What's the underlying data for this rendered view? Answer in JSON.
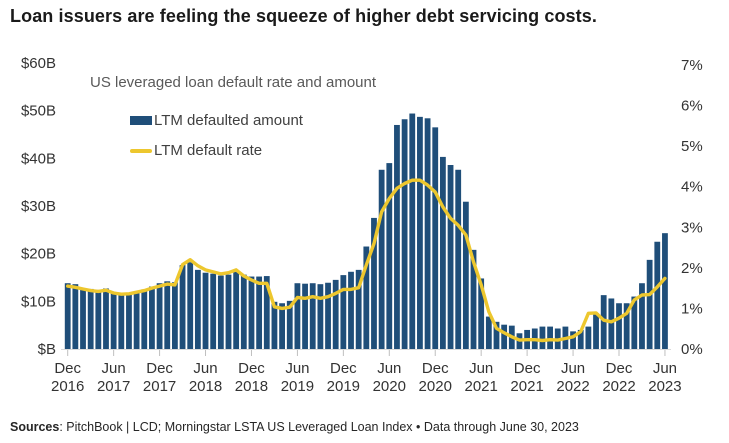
{
  "title": "Loan issuers are feeling the squeeze of higher debt servicing costs.",
  "chart": {
    "subtitle": "US leveraged loan default rate and amount",
    "legend": [
      {
        "label": "LTM defaulted amount",
        "swatch": "bar-swatch",
        "color": "#1F4E79"
      },
      {
        "label": "LTM default rate",
        "swatch": "line-swatch",
        "color": "#EDC72E"
      }
    ]
  },
  "colors": {
    "bar": "#1F4E79",
    "line": "#EDC72E",
    "axis_text": "#333333",
    "subtitle_text": "#595959",
    "baseline": "#D9D9D9",
    "tick": "#BFBFBF"
  },
  "footer": {
    "sources_label": "Sources",
    "sources_rest": ": PitchBook | LCD; Morningstar LSTA US Leveraged Loan Index • Data through June 30, 2023"
  },
  "chart_data": {
    "type": "combo",
    "title": "US leveraged loan default rate and amount",
    "grid": false,
    "legend_position": "top-left-inside",
    "x": [
      "2016-12",
      "2017-01",
      "2017-02",
      "2017-03",
      "2017-04",
      "2017-05",
      "2017-06",
      "2017-07",
      "2017-08",
      "2017-09",
      "2017-10",
      "2017-11",
      "2017-12",
      "2018-01",
      "2018-02",
      "2018-03",
      "2018-04",
      "2018-05",
      "2018-06",
      "2018-07",
      "2018-08",
      "2018-09",
      "2018-10",
      "2018-11",
      "2018-12",
      "2019-01",
      "2019-02",
      "2019-03",
      "2019-04",
      "2019-05",
      "2019-06",
      "2019-07",
      "2019-08",
      "2019-09",
      "2019-10",
      "2019-11",
      "2019-12",
      "2020-01",
      "2020-02",
      "2020-03",
      "2020-04",
      "2020-05",
      "2020-06",
      "2020-07",
      "2020-08",
      "2020-09",
      "2020-10",
      "2020-11",
      "2020-12",
      "2021-01",
      "2021-02",
      "2021-03",
      "2021-04",
      "2021-05",
      "2021-06",
      "2021-07",
      "2021-08",
      "2021-09",
      "2021-10",
      "2021-11",
      "2021-12",
      "2022-01",
      "2022-02",
      "2022-03",
      "2022-04",
      "2022-05",
      "2022-06",
      "2022-07",
      "2022-08",
      "2022-09",
      "2022-10",
      "2022-11",
      "2022-12",
      "2023-01",
      "2023-02",
      "2023-03",
      "2023-04",
      "2023-05",
      "2023-06"
    ],
    "x_tick_labels": [
      {
        "month": "Dec",
        "year": "2016"
      },
      {
        "month": "Jun",
        "year": "2017"
      },
      {
        "month": "Dec",
        "year": "2017"
      },
      {
        "month": "Jun",
        "year": "2018"
      },
      {
        "month": "Dec",
        "year": "2018"
      },
      {
        "month": "Jun",
        "year": "2019"
      },
      {
        "month": "Dec",
        "year": "2019"
      },
      {
        "month": "Jun",
        "year": "2020"
      },
      {
        "month": "Dec",
        "year": "2020"
      },
      {
        "month": "Jun",
        "year": "2021"
      },
      {
        "month": "Dec",
        "year": "2021"
      },
      {
        "month": "Jun",
        "year": "2022"
      },
      {
        "month": "Dec",
        "year": "2022"
      },
      {
        "month": "Jun",
        "year": "2023"
      }
    ],
    "series": [
      {
        "name": "LTM defaulted amount",
        "type": "bar",
        "axis": "left",
        "unit": "$B",
        "color": "#1F4E79",
        "values": [
          13.8,
          13.6,
          12.7,
          12.6,
          12.4,
          12.7,
          11.7,
          11.5,
          11.7,
          12.1,
          12.5,
          13.1,
          13.8,
          14.2,
          14.0,
          17.6,
          18.2,
          16.6,
          16.0,
          15.8,
          15.4,
          15.6,
          16.2,
          15.6,
          15.2,
          15.2,
          15.3,
          9.9,
          9.6,
          10.1,
          13.8,
          13.7,
          13.8,
          13.6,
          13.9,
          14.5,
          15.5,
          16.2,
          16.6,
          21.5,
          27.5,
          37.6,
          39.0,
          47.0,
          48.2,
          49.4,
          48.7,
          48.4,
          46.5,
          40.3,
          38.6,
          37.6,
          30.9,
          20.8,
          14.8,
          6.8,
          5.7,
          5.1,
          4.9,
          3.3,
          4.0,
          4.3,
          4.7,
          4.7,
          4.3,
          4.7,
          3.7,
          4.0,
          4.7,
          7.5,
          11.3,
          10.6,
          9.6,
          9.6,
          11.0,
          13.8,
          18.7,
          22.5,
          24.3
        ]
      },
      {
        "name": "LTM default rate",
        "type": "line",
        "axis": "right",
        "unit": "%",
        "color": "#EDC72E",
        "values": [
          1.55,
          1.52,
          1.48,
          1.44,
          1.42,
          1.45,
          1.38,
          1.35,
          1.36,
          1.4,
          1.44,
          1.5,
          1.55,
          1.6,
          1.58,
          2.08,
          2.2,
          2.05,
          1.95,
          1.9,
          1.85,
          1.88,
          1.95,
          1.8,
          1.7,
          1.62,
          1.62,
          1.04,
          1.0,
          1.03,
          1.27,
          1.25,
          1.29,
          1.25,
          1.29,
          1.37,
          1.47,
          1.47,
          1.51,
          2.07,
          2.6,
          3.38,
          3.71,
          3.96,
          4.08,
          4.16,
          4.16,
          4.04,
          3.87,
          3.5,
          3.22,
          3.05,
          2.81,
          2.15,
          1.58,
          0.92,
          0.51,
          0.4,
          0.3,
          0.22,
          0.23,
          0.23,
          0.21,
          0.23,
          0.22,
          0.26,
          0.3,
          0.43,
          0.88,
          0.89,
          0.71,
          0.67,
          0.76,
          0.88,
          1.21,
          1.33,
          1.34,
          1.53,
          1.74
        ]
      }
    ],
    "left_axis": {
      "unit": "$B",
      "min": 0,
      "max": 60,
      "ticks": [
        "$60B",
        "$50B",
        "$40B",
        "$30B",
        "$20B",
        "$10B",
        "$B"
      ]
    },
    "right_axis": {
      "unit": "%",
      "min": 0,
      "max": 7,
      "ticks": [
        "7%",
        "6%",
        "5%",
        "4%",
        "3%",
        "2%",
        "1%",
        "0%"
      ]
    }
  }
}
